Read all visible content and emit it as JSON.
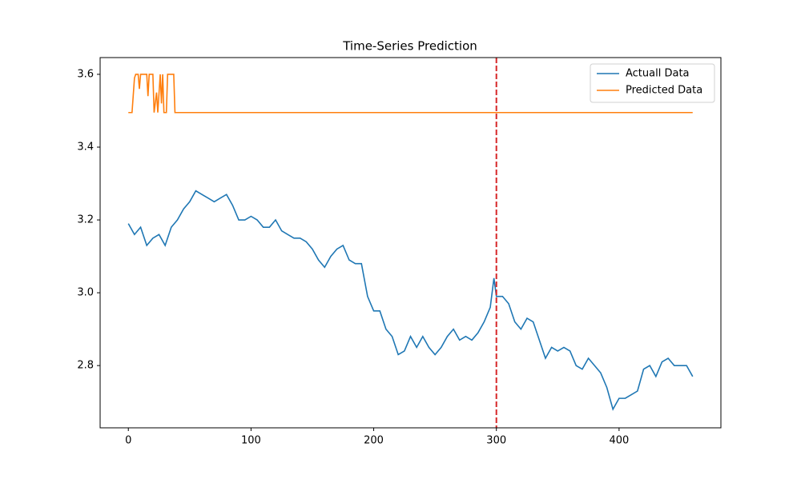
{
  "chart_data": {
    "type": "line",
    "title": "Time-Series Prediction",
    "series": [
      {
        "name": "Actuall Data",
        "color": "#1f77b4",
        "x": [
          0,
          5,
          10,
          15,
          20,
          25,
          30,
          35,
          40,
          45,
          50,
          55,
          60,
          65,
          70,
          75,
          80,
          85,
          90,
          95,
          100,
          105,
          110,
          115,
          120,
          125,
          130,
          135,
          140,
          145,
          150,
          155,
          160,
          165,
          170,
          175,
          180,
          185,
          190,
          195,
          200,
          205,
          210,
          215,
          220,
          225,
          230,
          235,
          240,
          245,
          250,
          255,
          260,
          265,
          270,
          275,
          280,
          285,
          290,
          295,
          298,
          300,
          305,
          310,
          315,
          320,
          325,
          330,
          335,
          340,
          345,
          350,
          355,
          360,
          365,
          370,
          375,
          380,
          385,
          390,
          395,
          400,
          405,
          410,
          415,
          420,
          425,
          430,
          435,
          440,
          445,
          450,
          455,
          460
        ],
        "values": [
          3.19,
          3.16,
          3.18,
          3.13,
          3.15,
          3.16,
          3.13,
          3.18,
          3.2,
          3.23,
          3.25,
          3.28,
          3.27,
          3.26,
          3.25,
          3.26,
          3.27,
          3.24,
          3.2,
          3.2,
          3.21,
          3.2,
          3.18,
          3.18,
          3.2,
          3.17,
          3.16,
          3.15,
          3.15,
          3.14,
          3.12,
          3.09,
          3.07,
          3.1,
          3.12,
          3.13,
          3.09,
          3.08,
          3.08,
          2.99,
          2.95,
          2.95,
          2.9,
          2.88,
          2.83,
          2.84,
          2.88,
          2.85,
          2.88,
          2.85,
          2.83,
          2.85,
          2.88,
          2.9,
          2.87,
          2.88,
          2.87,
          2.89,
          2.92,
          2.96,
          3.04,
          2.99,
          2.99,
          2.97,
          2.92,
          2.9,
          2.93,
          2.92,
          2.87,
          2.82,
          2.85,
          2.84,
          2.85,
          2.84,
          2.8,
          2.79,
          2.82,
          2.8,
          2.78,
          2.74,
          2.68,
          2.71,
          2.71,
          2.72,
          2.73,
          2.79,
          2.8,
          2.77,
          2.81,
          2.82,
          2.8,
          2.8,
          2.8,
          2.77
        ]
      },
      {
        "name": "Predicted Data",
        "color": "#ff7f0e",
        "x": [
          0,
          3,
          5,
          6,
          8,
          9,
          10,
          15,
          16,
          17,
          20,
          21,
          23,
          24,
          26,
          27,
          28,
          29,
          31,
          32,
          37,
          38,
          460
        ],
        "values": [
          3.495,
          3.495,
          3.59,
          3.6,
          3.6,
          3.56,
          3.6,
          3.6,
          3.54,
          3.6,
          3.6,
          3.495,
          3.55,
          3.495,
          3.6,
          3.52,
          3.6,
          3.495,
          3.495,
          3.6,
          3.6,
          3.495,
          3.495
        ]
      }
    ],
    "vline": {
      "x": 300,
      "color": "#d62728"
    },
    "xlim": [
      -23,
      483
    ],
    "xticks": [
      0,
      100,
      200,
      300,
      400
    ],
    "ylim": [
      2.629,
      3.646
    ],
    "yticks": [
      {
        "value": 2.8,
        "label": "2.8"
      },
      {
        "value": 3.0,
        "label": "3.0"
      },
      3.2,
      3.4,
      3.6
    ],
    "legend": "upper right"
  }
}
